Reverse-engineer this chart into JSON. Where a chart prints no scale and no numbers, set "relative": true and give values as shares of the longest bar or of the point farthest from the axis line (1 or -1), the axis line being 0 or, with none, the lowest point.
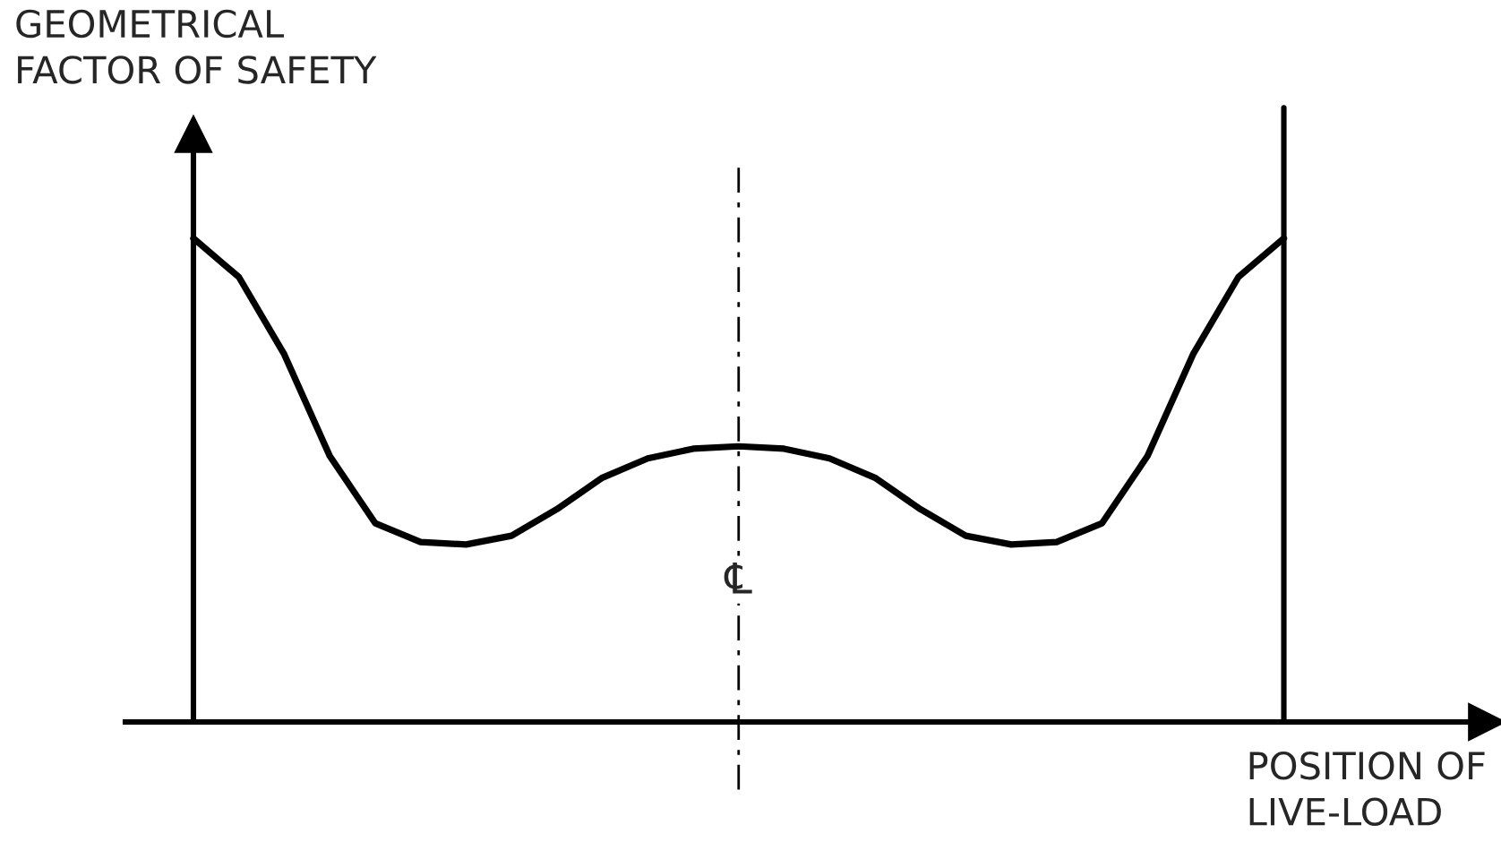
{
  "chart_data": {
    "type": "line",
    "relative": true,
    "marker": "none",
    "line_style": "solid",
    "xlabel": "POSITION OF\nLIVE-LOAD",
    "ylabel": "GEOMETRICAL\nFACTOR OF SAFETY",
    "categories": [
      null,
      null,
      null,
      null,
      null,
      null,
      null,
      null,
      null,
      null,
      null,
      null,
      null,
      null,
      null,
      null,
      null,
      null,
      null,
      null,
      null,
      null,
      null,
      null,
      null
    ],
    "series": [
      {
        "color": "#000000",
        "values": [
          1,
          0.92,
          0.76,
          0.55,
          0.411,
          0.372,
          0.367,
          0.385,
          0.44,
          0.505,
          0.545,
          0.565,
          0.57,
          0.565,
          0.545,
          0.505,
          0.44,
          0.385,
          0.367,
          0.372,
          0.411,
          0.55,
          0.76,
          0.92,
          1
        ]
      }
    ],
    "annotations": [
      "℄"
    ]
  }
}
